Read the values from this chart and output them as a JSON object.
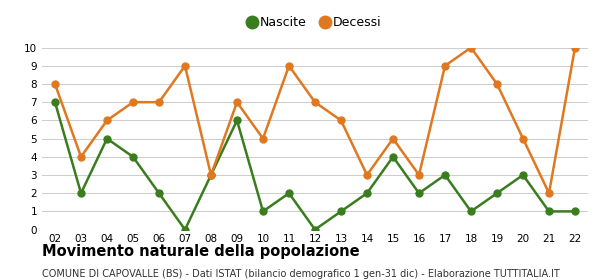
{
  "years": [
    "02",
    "03",
    "04",
    "05",
    "06",
    "07",
    "08",
    "09",
    "10",
    "11",
    "12",
    "13",
    "14",
    "15",
    "16",
    "17",
    "18",
    "19",
    "20",
    "21",
    "22"
  ],
  "nascite": [
    7,
    2,
    5,
    4,
    2,
    0,
    3,
    6,
    1,
    2,
    0,
    1,
    2,
    4,
    2,
    3,
    1,
    2,
    3,
    1,
    1
  ],
  "decessi": [
    8,
    4,
    6,
    7,
    7,
    9,
    3,
    7,
    5,
    9,
    7,
    6,
    3,
    5,
    3,
    9,
    10,
    8,
    5,
    2,
    10
  ],
  "nascite_color": "#3a7d1e",
  "decessi_color": "#e07820",
  "nascite_label": "Nascite",
  "decessi_label": "Decessi",
  "ylim": [
    0,
    10
  ],
  "yticks": [
    0,
    1,
    2,
    3,
    4,
    5,
    6,
    7,
    8,
    9,
    10
  ],
  "title": "Movimento naturale della popolazione",
  "subtitle": "COMUNE DI CAPOVALLE (BS) - Dati ISTAT (bilancio demografico 1 gen-31 dic) - Elaborazione TUTTITALIA.IT",
  "title_fontsize": 10.5,
  "subtitle_fontsize": 7.0,
  "bg_color": "#ffffff",
  "grid_color": "#cccccc",
  "marker_size": 5,
  "line_width": 1.8
}
